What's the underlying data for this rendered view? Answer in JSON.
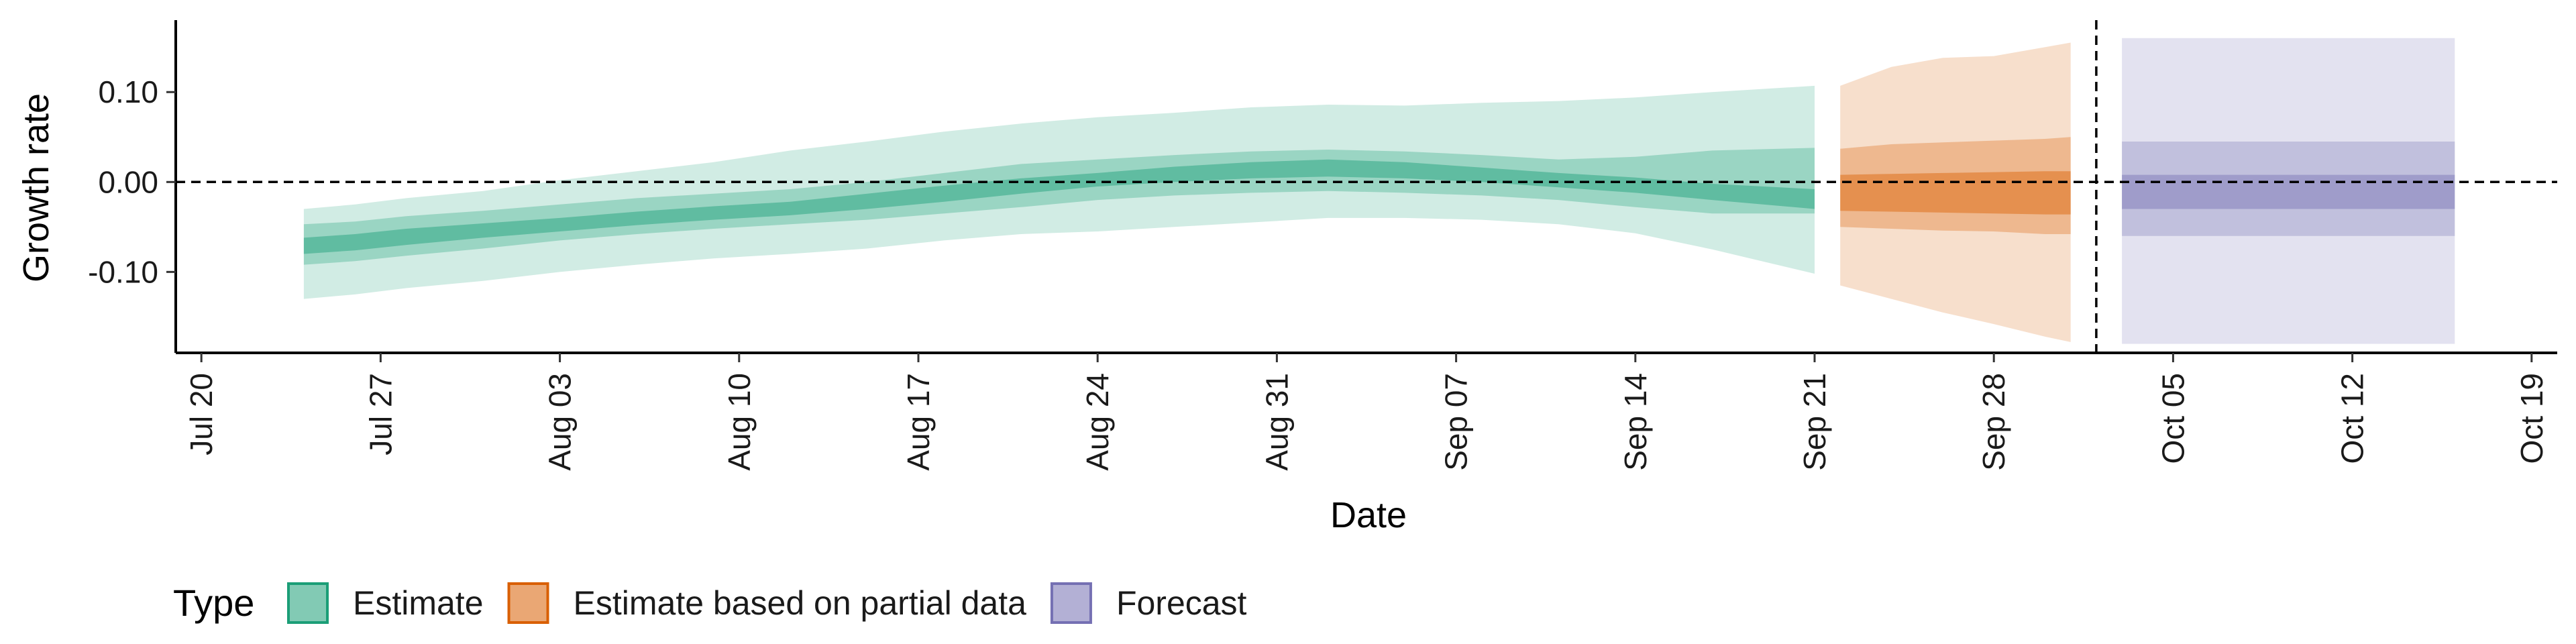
{
  "chart_data": {
    "type": "area",
    "xlabel": "Date",
    "ylabel": "Growth rate",
    "x_range": [
      "2020-07-19",
      "2020-10-20"
    ],
    "ylim": [
      -0.19,
      0.18
    ],
    "x_ticks": [
      {
        "date": "2020-07-20",
        "label": "Jul 20"
      },
      {
        "date": "2020-07-27",
        "label": "Jul 27"
      },
      {
        "date": "2020-08-03",
        "label": "Aug 03"
      },
      {
        "date": "2020-08-10",
        "label": "Aug 10"
      },
      {
        "date": "2020-08-17",
        "label": "Aug 17"
      },
      {
        "date": "2020-08-24",
        "label": "Aug 24"
      },
      {
        "date": "2020-08-31",
        "label": "Aug 31"
      },
      {
        "date": "2020-09-07",
        "label": "Sep 07"
      },
      {
        "date": "2020-09-14",
        "label": "Sep 14"
      },
      {
        "date": "2020-09-21",
        "label": "Sep 21"
      },
      {
        "date": "2020-09-28",
        "label": "Sep 28"
      },
      {
        "date": "2020-10-05",
        "label": "Oct 05"
      },
      {
        "date": "2020-10-12",
        "label": "Oct 12"
      },
      {
        "date": "2020-10-19",
        "label": "Oct 19"
      }
    ],
    "y_ticks": [
      {
        "value": 0.1,
        "label": "0.10"
      },
      {
        "value": 0.0,
        "label": "0.00"
      },
      {
        "value": -0.1,
        "label": "-0.10"
      }
    ],
    "reference_lines": [
      {
        "orientation": "horizontal",
        "value": 0.0,
        "style": "dashed"
      },
      {
        "orientation": "vertical",
        "date": "2020-10-02",
        "style": "dashed"
      }
    ],
    "legend": {
      "title": "Type",
      "position": "bottom",
      "items": [
        {
          "label": "Estimate",
          "color": "#1b9e77"
        },
        {
          "label": "Estimate based on partial data",
          "color": "#d95f02"
        },
        {
          "label": "Forecast",
          "color": "#7570b3"
        }
      ]
    },
    "series": [
      {
        "type_index": 0,
        "color": "#1b9e77",
        "x": [
          "2020-07-24",
          "2020-07-26",
          "2020-07-28",
          "2020-07-31",
          "2020-08-03",
          "2020-08-06",
          "2020-08-09",
          "2020-08-12",
          "2020-08-15",
          "2020-08-18",
          "2020-08-21",
          "2020-08-24",
          "2020-08-27",
          "2020-08-30",
          "2020-09-02",
          "2020-09-05",
          "2020-09-08",
          "2020-09-11",
          "2020-09-14",
          "2020-09-17",
          "2020-09-21"
        ],
        "lower90": [
          -0.13,
          -0.125,
          -0.118,
          -0.11,
          -0.1,
          -0.092,
          -0.085,
          -0.08,
          -0.074,
          -0.065,
          -0.058,
          -0.055,
          -0.05,
          -0.045,
          -0.04,
          -0.04,
          -0.042,
          -0.047,
          -0.057,
          -0.075,
          -0.102
        ],
        "upper90": [
          -0.03,
          -0.025,
          -0.018,
          -0.01,
          0.002,
          0.012,
          0.022,
          0.035,
          0.045,
          0.056,
          0.065,
          0.072,
          0.077,
          0.083,
          0.086,
          0.085,
          0.088,
          0.09,
          0.094,
          0.1,
          0.107
        ],
        "lower50": [
          -0.092,
          -0.088,
          -0.082,
          -0.074,
          -0.065,
          -0.058,
          -0.052,
          -0.047,
          -0.042,
          -0.035,
          -0.028,
          -0.02,
          -0.015,
          -0.012,
          -0.01,
          -0.012,
          -0.015,
          -0.02,
          -0.028,
          -0.035,
          -0.035
        ],
        "upper50": [
          -0.047,
          -0.044,
          -0.038,
          -0.032,
          -0.025,
          -0.018,
          -0.013,
          -0.008,
          0.0,
          0.01,
          0.02,
          0.025,
          0.03,
          0.034,
          0.036,
          0.034,
          0.03,
          0.025,
          0.028,
          0.035,
          0.038
        ],
        "lower20": [
          -0.08,
          -0.076,
          -0.07,
          -0.062,
          -0.055,
          -0.048,
          -0.042,
          -0.037,
          -0.03,
          -0.022,
          -0.013,
          -0.005,
          0.0,
          0.004,
          0.006,
          0.004,
          0.0,
          -0.006,
          -0.012,
          -0.02,
          -0.03
        ],
        "upper20": [
          -0.062,
          -0.058,
          -0.052,
          -0.046,
          -0.04,
          -0.033,
          -0.027,
          -0.022,
          -0.013,
          -0.004,
          0.004,
          0.01,
          0.017,
          0.022,
          0.025,
          0.022,
          0.016,
          0.01,
          0.005,
          -0.002,
          -0.008
        ]
      },
      {
        "type_index": 1,
        "color": "#d95f02",
        "x": [
          "2020-09-22",
          "2020-09-24",
          "2020-09-26",
          "2020-09-28",
          "2020-09-30",
          "2020-10-01"
        ],
        "lower90": [
          -0.115,
          -0.13,
          -0.145,
          -0.158,
          -0.172,
          -0.178
        ],
        "upper90": [
          0.107,
          0.128,
          0.138,
          0.14,
          0.15,
          0.155
        ],
        "lower50": [
          -0.05,
          -0.052,
          -0.054,
          -0.055,
          -0.058,
          -0.058
        ],
        "upper50": [
          0.037,
          0.042,
          0.044,
          0.046,
          0.048,
          0.05
        ],
        "lower20": [
          -0.032,
          -0.033,
          -0.034,
          -0.035,
          -0.036,
          -0.036
        ],
        "upper20": [
          0.008,
          0.009,
          0.01,
          0.011,
          0.012,
          0.012
        ]
      },
      {
        "type_index": 2,
        "color": "#7570b3",
        "x": [
          "2020-10-03",
          "2020-10-16"
        ],
        "lower90": [
          -0.18,
          -0.18
        ],
        "upper90": [
          0.16,
          0.16
        ],
        "lower50": [
          -0.06,
          -0.06
        ],
        "upper50": [
          0.045,
          0.045
        ],
        "lower20": [
          -0.03,
          -0.03
        ],
        "upper20": [
          0.008,
          0.008
        ]
      }
    ]
  }
}
